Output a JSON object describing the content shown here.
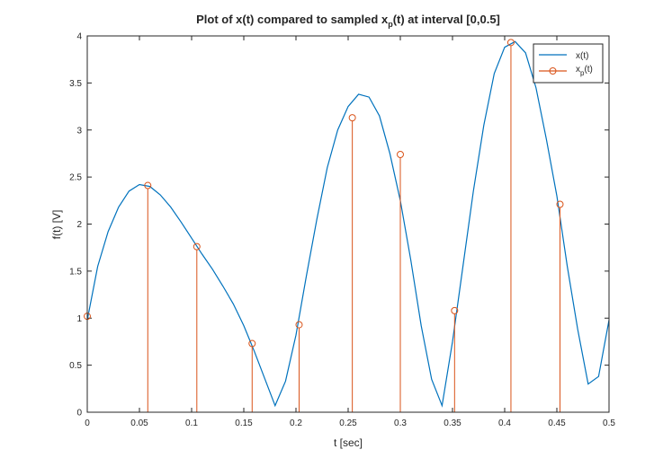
{
  "chart_data": {
    "type": "line",
    "title_main": "Plot of x(t) compared to sampled x",
    "title_sub": "p",
    "title_tail": "(t) at interval [0,0.5]",
    "xlabel": "t [sec]",
    "ylabel": "f(t) [V]",
    "xlim": [
      0,
      0.5
    ],
    "ylim": [
      0,
      4
    ],
    "xticks": [
      "0",
      "0.05",
      "0.1",
      "0.15",
      "0.2",
      "0.25",
      "0.3",
      "0.35",
      "0.4",
      "0.45",
      "0.5"
    ],
    "yticks": [
      "0",
      "0.5",
      "1",
      "1.5",
      "2",
      "2.5",
      "3",
      "3.5",
      "4"
    ],
    "grid": false,
    "legend_position": "top-right",
    "series": [
      {
        "name": "x(t)",
        "color": "#0072BD",
        "style": "line",
        "x": [
          0,
          0.01,
          0.02,
          0.03,
          0.04,
          0.05,
          0.06,
          0.07,
          0.08,
          0.09,
          0.1,
          0.11,
          0.12,
          0.13,
          0.14,
          0.15,
          0.16,
          0.17,
          0.18,
          0.19,
          0.2,
          0.21,
          0.22,
          0.23,
          0.24,
          0.25,
          0.26,
          0.27,
          0.28,
          0.29,
          0.3,
          0.31,
          0.32,
          0.33,
          0.34,
          0.35,
          0.36,
          0.37,
          0.38,
          0.39,
          0.4,
          0.41,
          0.42,
          0.43,
          0.44,
          0.45,
          0.46,
          0.47,
          0.48,
          0.49,
          0.5
        ],
        "y": [
          0.98,
          1.55,
          1.92,
          2.18,
          2.35,
          2.42,
          2.4,
          2.31,
          2.18,
          2.02,
          1.85,
          1.68,
          1.52,
          1.34,
          1.15,
          0.92,
          0.65,
          0.36,
          0.07,
          0.33,
          0.82,
          1.45,
          2.05,
          2.6,
          3.0,
          3.25,
          3.38,
          3.35,
          3.15,
          2.75,
          2.25,
          1.62,
          0.92,
          0.35,
          0.07,
          0.75,
          1.55,
          2.35,
          3.05,
          3.6,
          3.88,
          3.94,
          3.82,
          3.45,
          2.9,
          2.3,
          1.55,
          0.88,
          0.3,
          0.38,
          0.98
        ]
      },
      {
        "name": "x_p(t)",
        "color": "#D95319",
        "style": "stem",
        "x": [
          0.0,
          0.058,
          0.105,
          0.158,
          0.203,
          0.254,
          0.3,
          0.352,
          0.406,
          0.453
        ],
        "y": [
          1.02,
          2.41,
          1.76,
          0.73,
          0.93,
          3.13,
          2.74,
          1.08,
          3.93,
          2.21
        ]
      }
    ]
  },
  "legend": {
    "entry1_label": "x(t)",
    "entry2_main": "x",
    "entry2_sub": "p",
    "entry2_tail": "(t)"
  }
}
